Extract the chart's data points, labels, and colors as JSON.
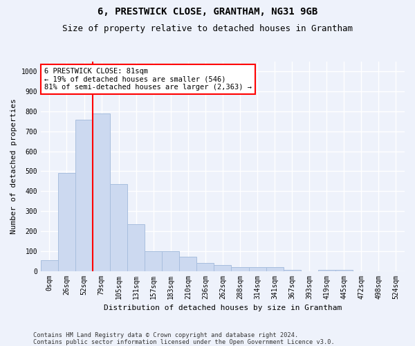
{
  "title": "6, PRESTWICK CLOSE, GRANTHAM, NG31 9GB",
  "subtitle": "Size of property relative to detached houses in Grantham",
  "xlabel": "Distribution of detached houses by size in Grantham",
  "ylabel": "Number of detached properties",
  "bar_labels": [
    "0sqm",
    "26sqm",
    "52sqm",
    "79sqm",
    "105sqm",
    "131sqm",
    "157sqm",
    "183sqm",
    "210sqm",
    "236sqm",
    "262sqm",
    "288sqm",
    "314sqm",
    "341sqm",
    "367sqm",
    "393sqm",
    "419sqm",
    "445sqm",
    "472sqm",
    "498sqm",
    "524sqm"
  ],
  "bar_values": [
    55,
    490,
    760,
    790,
    435,
    235,
    100,
    100,
    70,
    40,
    30,
    20,
    20,
    18,
    5,
    0,
    5,
    5,
    0,
    0,
    0
  ],
  "bar_color": "#ccd9f0",
  "bar_edge_color": "#a8bede",
  "red_line_index": 3.5,
  "annotation_text": "6 PRESTWICK CLOSE: 81sqm\n← 19% of detached houses are smaller (546)\n81% of semi-detached houses are larger (2,363) →",
  "annotation_box_color": "white",
  "annotation_box_edge": "red",
  "ylim": [
    0,
    1050
  ],
  "yticks": [
    0,
    100,
    200,
    300,
    400,
    500,
    600,
    700,
    800,
    900,
    1000
  ],
  "footer1": "Contains HM Land Registry data © Crown copyright and database right 2024.",
  "footer2": "Contains public sector information licensed under the Open Government Licence v3.0.",
  "background_color": "#eef2fb",
  "grid_color": "white",
  "title_fontsize": 10,
  "subtitle_fontsize": 9,
  "tick_fontsize": 7,
  "ylabel_fontsize": 8,
  "xlabel_fontsize": 8,
  "annotation_fontsize": 7.5
}
